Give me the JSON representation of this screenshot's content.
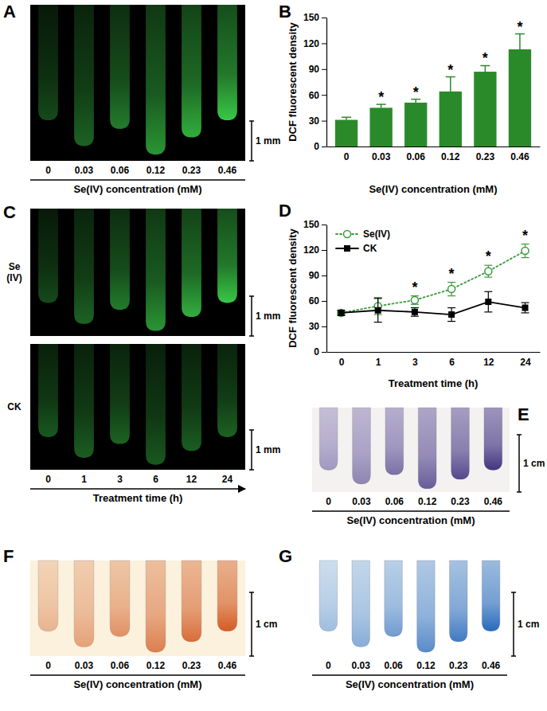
{
  "chart_data": [
    {
      "type": "image",
      "title": "A",
      "categories": [
        "0",
        "0.03",
        "0.06",
        "0.12",
        "0.23",
        "0.46"
      ],
      "xlabel": "Se(IV) concentration (mM)",
      "annotations": [
        "1 mm"
      ],
      "color": "#3cd24a"
    },
    {
      "type": "bar",
      "title": "B",
      "categories": [
        "0",
        "0.03",
        "0.06",
        "0.12",
        "0.23",
        "0.46"
      ],
      "values": [
        31,
        45,
        51,
        64,
        87,
        113
      ],
      "errors": [
        3,
        4,
        4,
        17,
        7,
        18
      ],
      "significance": [
        null,
        "*",
        "*",
        "*",
        "*",
        "*"
      ],
      "xlabel": "Se(IV) concentration (mM)",
      "ylabel": "DCF fluorescent density",
      "ylim": [
        0,
        150
      ],
      "yticks": [
        0,
        30,
        60,
        90,
        120,
        150
      ],
      "color": "#2a8a2a"
    },
    {
      "type": "image",
      "title": "C",
      "categories": [
        "0",
        "1",
        "3",
        "6",
        "12",
        "24"
      ],
      "row_labels": [
        "Se\n(IV)",
        "CK"
      ],
      "xlabel": "Treatment time (h)",
      "annotations": [
        "1 mm",
        "1 mm"
      ],
      "color": "#3cd24a"
    },
    {
      "type": "line",
      "title": "D",
      "categories": [
        "0",
        "1",
        "3",
        "6",
        "12",
        "24"
      ],
      "series": [
        {
          "name": "Se(IV)",
          "color": "#3a9a3a",
          "marker": "circle",
          "line_style": "dotted",
          "values": [
            46,
            54,
            61,
            74,
            95,
            119
          ],
          "errors": [
            3,
            10,
            5,
            8,
            7,
            8
          ]
        },
        {
          "name": "CK",
          "color": "#000000",
          "marker": "square",
          "line_style": "solid",
          "values": [
            46,
            49,
            47,
            44,
            59,
            52
          ],
          "errors": [
            3,
            14,
            5,
            8,
            12,
            6
          ]
        }
      ],
      "significance": [
        null,
        null,
        "*",
        "*",
        "*",
        "*"
      ],
      "xlabel": "Treatment time (h)",
      "ylabel": "DCF fluorescent density",
      "ylim": [
        0,
        150
      ],
      "yticks": [
        0,
        30,
        60,
        90,
        120,
        150
      ],
      "legend": "upper left"
    },
    {
      "type": "image",
      "title": "E",
      "categories": [
        "0",
        "0.03",
        "0.06",
        "0.12",
        "0.23",
        "0.46"
      ],
      "xlabel": "Se(IV) concentration (mM)",
      "annotations": [
        "1 cm"
      ],
      "color": "#3b2d7a"
    },
    {
      "type": "image",
      "title": "F",
      "categories": [
        "0",
        "0.03",
        "0.06",
        "0.12",
        "0.23",
        "0.46"
      ],
      "xlabel": "Se(IV) concentration (mM)",
      "annotations": [
        "1 cm"
      ],
      "color": "#d2541c"
    },
    {
      "type": "image",
      "title": "G",
      "categories": [
        "0",
        "0.03",
        "0.06",
        "0.12",
        "0.23",
        "0.46"
      ],
      "xlabel": "Se(IV) concentration (mM)",
      "annotations": [
        "1 cm"
      ],
      "color": "#1f63b8"
    }
  ]
}
